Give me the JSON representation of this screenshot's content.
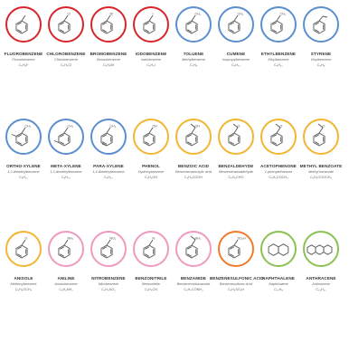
{
  "colors": {
    "red": "#d7262b",
    "blue": "#5b8fd0",
    "yellow": "#f2b632",
    "pink": "#ef9ac0",
    "orange": "#f07b2e",
    "green": "#8cc152"
  },
  "compounds": [
    {
      "name": "FLUOROBENZENE",
      "sub": "Fluorobenzene",
      "formula": "C₆H₅F",
      "color": "red",
      "icon": "ring-with-single-bond-substituent",
      "subst": "single"
    },
    {
      "name": "CHLOROBENZENE",
      "sub": "Chlorobenzene",
      "formula": "C₆H₅Cl",
      "color": "red",
      "icon": "ring-with-cl-label",
      "subst": "Cl"
    },
    {
      "name": "BROMOBENZENE",
      "sub": "Bromobenzene",
      "formula": "C₆H₅Br",
      "color": "red",
      "icon": "ring-with-br-label",
      "subst": "Br"
    },
    {
      "name": "IODOBENZENE",
      "sub": "Iodobenzene",
      "formula": "C₆H₅I",
      "color": "red",
      "icon": "ring-with-i-label",
      "subst": "I"
    },
    {
      "name": "TOLUENE",
      "sub": "Methylbenzene",
      "formula": "C₇H₈",
      "color": "blue",
      "icon": "ring-with-methyl",
      "subst": "CH₃"
    },
    {
      "name": "CUMENE",
      "sub": "Isopropylbenzene",
      "formula": "C₉H₁₂",
      "color": "blue",
      "icon": "ring-with-isopropyl",
      "subst": "CH₃"
    },
    {
      "name": "ETHYLBENZENE",
      "sub": "Ethylbenzene",
      "formula": "C₈H₁₀",
      "color": "blue",
      "icon": "ring-with-ethyl",
      "subst": "CH₃"
    },
    {
      "name": "STYRENE",
      "sub": "Vinylbenzene",
      "formula": "C₈H₈",
      "color": "blue",
      "icon": "ring-with-vinyl",
      "subst": "vinyl"
    },
    {
      "name": "ORTHO-XYLENE",
      "sub": "1,2-dimethylbenzene",
      "formula": "C₈H₁₀",
      "color": "blue",
      "icon": "ring-with-two-methyls",
      "subst": "CH₃"
    },
    {
      "name": "META-XYLENE",
      "sub": "1,3-dimethylbenzene",
      "formula": "C₈H₁₀",
      "color": "blue",
      "icon": "ring-with-two-methyls-meta",
      "subst": "CH₃"
    },
    {
      "name": "PARA-XYLENE",
      "sub": "1,4-dimethylbenzene",
      "formula": "C₈H₁₀",
      "color": "blue",
      "icon": "ring-with-two-methyls-para",
      "subst": "CH₃"
    },
    {
      "name": "PHENOL",
      "sub": "Hydroxybenzene",
      "formula": "C₆H₅OH",
      "color": "yellow",
      "icon": "ring-with-oh",
      "subst": "OH"
    },
    {
      "name": "BENZOIC ACID",
      "sub": "Benzenecarboxylic acid",
      "formula": "C₆H₅COOH",
      "color": "yellow",
      "icon": "ring-with-carboxyl",
      "subst": "OH"
    },
    {
      "name": "BENZALDEHYDE",
      "sub": "Benzenecarbaldehyde",
      "formula": "C₆H₅CHO",
      "color": "yellow",
      "icon": "ring-with-aldehyde",
      "subst": "O"
    },
    {
      "name": "ACETOPHENONE",
      "sub": "1-phenylethanone",
      "formula": "C₆H₅COCH₃",
      "color": "yellow",
      "icon": "ring-with-ketone",
      "subst": "O"
    },
    {
      "name": "METHYL BENZOATE",
      "sub": "Methyl benzoate",
      "formula": "C₆H₅COOCH₃",
      "color": "yellow",
      "icon": "ring-with-ester",
      "subst": "O"
    },
    {
      "name": "ANISOLE",
      "sub": "Methoxybenzene",
      "formula": "C₆H₅OCH₃",
      "color": "yellow",
      "icon": "ring-with-methoxy",
      "subst": "O"
    },
    {
      "name": "ANILINE",
      "sub": "Aminobenzene",
      "formula": "C₆H₅NH₂",
      "color": "pink",
      "icon": "ring-with-amine",
      "subst": "NH₂"
    },
    {
      "name": "NITROBENZENE",
      "sub": "Nitrobenzene",
      "formula": "C₆H₅NO₂",
      "color": "pink",
      "icon": "ring-with-nitro",
      "subst": "NO₂"
    },
    {
      "name": "BENZONITRILE",
      "sub": "Benzonitrile",
      "formula": "C₆H₅CN",
      "color": "pink",
      "icon": "ring-with-nitrile",
      "subst": "N"
    },
    {
      "name": "BENZAMIDE",
      "sub": "Benzenecarboxamide",
      "formula": "C₆H₅CONH₂",
      "color": "pink",
      "icon": "ring-with-amide",
      "subst": "NH₂"
    },
    {
      "name": "BENZENESULFONIC ACID",
      "sub": "Benzenesulfonic Acid",
      "formula": "C₆H₅SO₃H",
      "color": "orange",
      "icon": "ring-with-sulfonic",
      "subst": "SO₃H"
    },
    {
      "name": "NAPHTHALENE",
      "sub": "Naphthalene",
      "formula": "C₁₀H₈",
      "color": "green",
      "icon": "naphthalene-rings",
      "subst": "none"
    },
    {
      "name": "ANTHRACENE",
      "sub": "Anthracene",
      "formula": "C₁₄H₁₀",
      "color": "green",
      "icon": "anthracene-rings",
      "subst": "none"
    }
  ]
}
